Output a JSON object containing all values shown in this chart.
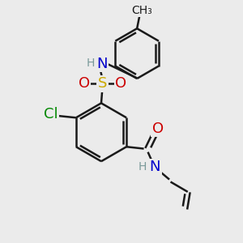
{
  "bg_color": "#ebebeb",
  "bond_color": "#1a1a1a",
  "atom_colors": {
    "N": "#0000cc",
    "O": "#cc0000",
    "S": "#ccaa00",
    "Cl": "#008800",
    "H": "#7a9a9a",
    "C": "#1a1a1a"
  },
  "bond_width": 1.8,
  "font_size_atom": 13,
  "font_size_small": 10
}
